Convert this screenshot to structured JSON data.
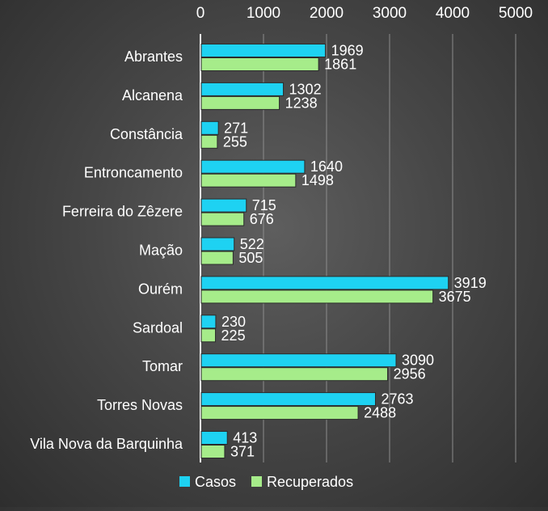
{
  "chart_data": {
    "type": "bar",
    "orientation": "horizontal",
    "categories": [
      "Abrantes",
      "Alcanena",
      "Constância",
      "Entroncamento",
      "Ferreira do Zêzere",
      "Mação",
      "Ourém",
      "Sardoal",
      "Tomar",
      "Torres Novas",
      "Vila Nova da Barquinha"
    ],
    "series": [
      {
        "name": "Casos",
        "color": "#1ed2f2",
        "values": [
          1969,
          1302,
          271,
          1640,
          715,
          522,
          3919,
          230,
          3090,
          2763,
          413
        ]
      },
      {
        "name": "Recuperados",
        "color": "#a6ec8a",
        "values": [
          1861,
          1238,
          255,
          1498,
          676,
          505,
          3675,
          225,
          2956,
          2488,
          371
        ]
      }
    ],
    "xlim": [
      0,
      5000
    ],
    "xticks": [
      "0",
      "1000",
      "2000",
      "3000",
      "4000",
      "5000"
    ],
    "axis_position": "top",
    "grid": true,
    "legend_position": "bottom",
    "data_labels": true
  }
}
